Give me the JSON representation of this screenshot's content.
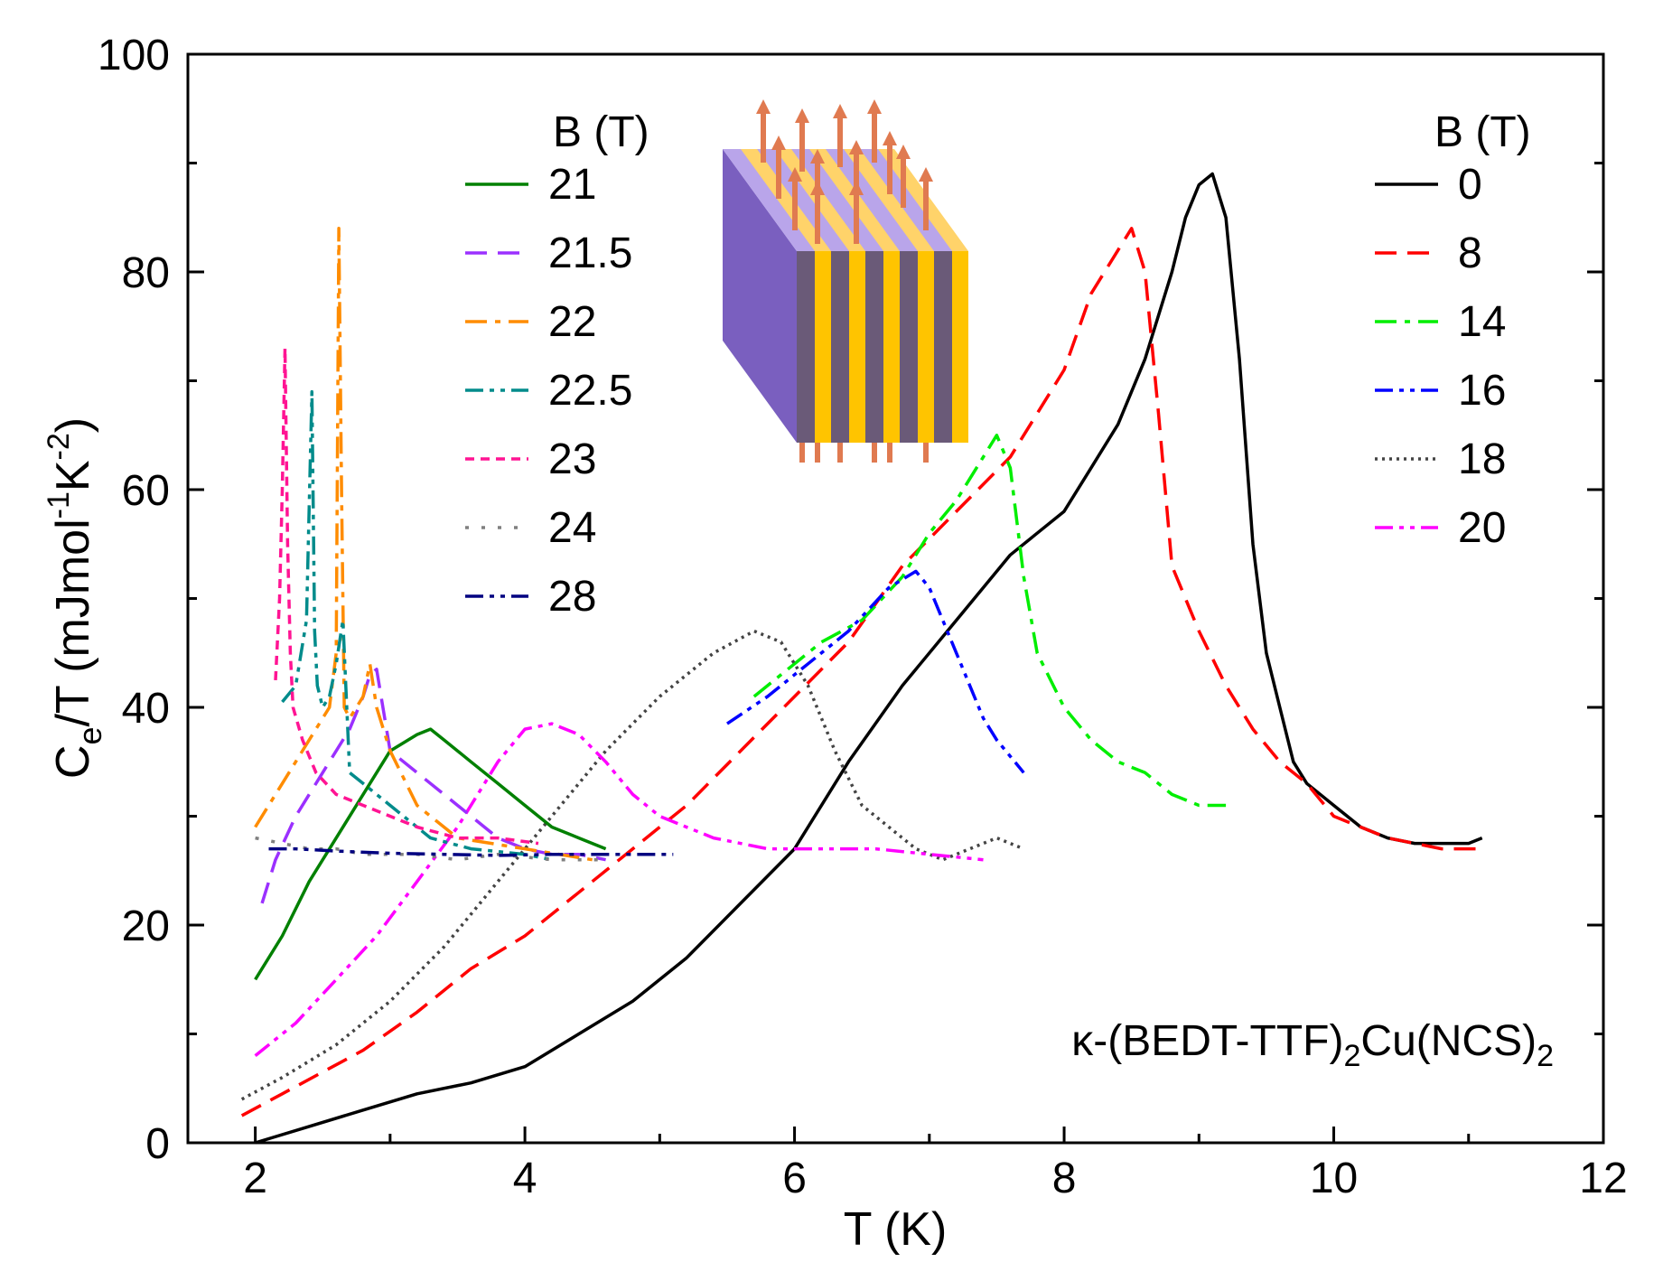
{
  "chart_data": {
    "type": "line",
    "title": "",
    "xlabel": "T (K)",
    "ylabel_main": "C",
    "ylabel_sub": "e",
    "ylabel_rest": "/T (mJmol",
    "ylabel_exp1": "-1",
    "ylabel_k": "K",
    "ylabel_exp2": "-2",
    "ylabel_close": ")",
    "xlim": [
      1.5,
      12
    ],
    "ylim": [
      0,
      100
    ],
    "x_ticks": [
      2,
      4,
      6,
      8,
      10,
      12
    ],
    "x_tick_labels": [
      "2",
      "4",
      "6",
      "8",
      "10",
      "12"
    ],
    "y_ticks": [
      0,
      20,
      40,
      60,
      80,
      100
    ],
    "y_tick_labels": [
      "0",
      "20",
      "40",
      "60",
      "80",
      "100"
    ],
    "annotation": {
      "prefix": "κ-(BEDT-TTF)",
      "sub1": "2",
      "mid": "Cu(NCS)",
      "sub2": "2"
    },
    "legend_left": {
      "title": "B (T)",
      "position": "upper-left"
    },
    "legend_right": {
      "title": "B (T)",
      "position": "upper-right"
    },
    "series": [
      {
        "name": "0",
        "group": "right",
        "color": "#000000",
        "dash": "solid",
        "x": [
          2.0,
          2.4,
          2.8,
          3.2,
          3.6,
          4.0,
          4.4,
          4.8,
          5.2,
          5.6,
          6.0,
          6.4,
          6.8,
          7.2,
          7.6,
          7.8,
          8.0,
          8.2,
          8.4,
          8.6,
          8.8,
          8.9,
          9.0,
          9.1,
          9.2,
          9.3,
          9.4,
          9.5,
          9.6,
          9.7,
          9.8,
          10.0,
          10.2,
          10.4,
          10.6,
          10.8,
          11.0,
          11.1
        ],
        "y": [
          0,
          1.5,
          3,
          4.5,
          5.5,
          7,
          10,
          13,
          17,
          22,
          27,
          35,
          42,
          48,
          54,
          56,
          58,
          62,
          66,
          72,
          80,
          85,
          88,
          89,
          85,
          72,
          55,
          45,
          40,
          35,
          33,
          31,
          29,
          28,
          27.5,
          27.5,
          27.5,
          28
        ]
      },
      {
        "name": "8",
        "group": "right",
        "color": "#ff0000",
        "dash": "long-dash",
        "x": [
          1.9,
          2.2,
          2.5,
          2.8,
          3.2,
          3.6,
          4.0,
          4.4,
          4.8,
          5.2,
          5.6,
          6.0,
          6.4,
          6.8,
          7.2,
          7.6,
          8.0,
          8.2,
          8.4,
          8.5,
          8.6,
          8.7,
          8.8,
          9.0,
          9.2,
          9.4,
          9.6,
          9.8,
          10.0,
          10.4,
          10.8,
          11.1
        ],
        "y": [
          2.5,
          4.5,
          6.5,
          8.5,
          12,
          16,
          19,
          23,
          27,
          31,
          36,
          41,
          46,
          53,
          58,
          63,
          71,
          78,
          82,
          84,
          80,
          67,
          53,
          47,
          42,
          38,
          35,
          33,
          30,
          28,
          27,
          27
        ]
      },
      {
        "name": "14",
        "group": "right",
        "color": "#00ee00",
        "dash": "dash-dot",
        "x": [
          5.7,
          5.9,
          6.2,
          6.5,
          6.8,
          7.0,
          7.2,
          7.4,
          7.5,
          7.6,
          7.7,
          7.8,
          8.0,
          8.2,
          8.4,
          8.6,
          8.8,
          9.0,
          9.2
        ],
        "y": [
          41,
          43,
          46,
          48,
          52,
          56,
          59,
          63,
          65,
          62,
          52,
          45,
          40,
          37,
          35,
          34,
          32,
          31,
          31
        ]
      },
      {
        "name": "16",
        "group": "right",
        "color": "#0000ff",
        "dash": "dash-dot-dot",
        "x": [
          5.5,
          5.8,
          6.1,
          6.4,
          6.7,
          6.9,
          7.0,
          7.1,
          7.2,
          7.3,
          7.4,
          7.5,
          7.6,
          7.7
        ],
        "y": [
          38.5,
          41,
          44,
          47,
          51,
          52.5,
          51,
          48,
          45,
          42,
          39,
          37,
          35.5,
          34
        ]
      },
      {
        "name": "18",
        "group": "right",
        "color": "#444444",
        "dash": "dotted",
        "x": [
          1.9,
          2.2,
          2.6,
          3.0,
          3.4,
          3.8,
          4.2,
          4.6,
          5.0,
          5.4,
          5.7,
          5.9,
          6.1,
          6.3,
          6.5,
          6.7,
          6.9,
          7.1,
          7.3,
          7.5,
          7.7
        ],
        "y": [
          4,
          6,
          9,
          13,
          18,
          24,
          30,
          36,
          41,
          45,
          47,
          46,
          42,
          36,
          31,
          29,
          27,
          26,
          27,
          28,
          27
        ]
      },
      {
        "name": "20",
        "group": "right",
        "color": "#ff00ff",
        "dash": "dash-dot-dot",
        "x": [
          2.0,
          2.3,
          2.6,
          2.9,
          3.2,
          3.5,
          3.8,
          4.0,
          4.2,
          4.4,
          4.6,
          4.8,
          5.0,
          5.4,
          5.8,
          6.2,
          6.6,
          7.0,
          7.4
        ],
        "y": [
          8,
          11,
          15,
          19,
          24,
          29,
          35,
          38,
          38.5,
          37.5,
          35,
          32,
          30,
          28,
          27,
          27,
          27,
          26.5,
          26
        ]
      },
      {
        "name": "21",
        "group": "left",
        "color": "#008000",
        "dash": "solid",
        "x": [
          2.0,
          2.2,
          2.4,
          2.6,
          2.8,
          3.0,
          3.2,
          3.3,
          3.4,
          3.6,
          3.8,
          4.0,
          4.2,
          4.4,
          4.6
        ],
        "y": [
          15,
          19,
          24,
          28,
          32,
          36,
          37.5,
          38,
          37,
          35,
          33,
          31,
          29,
          28,
          27
        ]
      },
      {
        "name": "21.5",
        "group": "left",
        "color": "#9b30ff",
        "dash": "long-dash",
        "x": [
          2.05,
          2.15,
          2.3,
          2.5,
          2.7,
          2.8,
          2.85,
          2.9,
          3.0,
          3.2,
          3.4,
          3.6,
          3.8,
          4.0,
          4.2,
          4.4,
          4.6
        ],
        "y": [
          22,
          26,
          30,
          34,
          38,
          41,
          43,
          43.5,
          36,
          34,
          32,
          30,
          28,
          27,
          26.5,
          26.5,
          26
        ]
      },
      {
        "name": "22",
        "group": "left",
        "color": "#ff8c00",
        "dash": "dash-dot",
        "x": [
          2.0,
          2.2,
          2.4,
          2.55,
          2.6,
          2.62,
          2.64,
          2.66,
          2.7,
          2.8,
          2.85,
          2.9,
          3.0,
          3.2,
          3.5,
          4.0,
          4.5
        ],
        "y": [
          29,
          33,
          37,
          40,
          45,
          84,
          60,
          40,
          39,
          41,
          44,
          40,
          36,
          31,
          28,
          27,
          26
        ]
      },
      {
        "name": "22.5",
        "group": "left",
        "color": "#008b8b",
        "dash": "dash-dot-dot",
        "x": [
          2.2,
          2.3,
          2.38,
          2.42,
          2.44,
          2.46,
          2.5,
          2.55,
          2.6,
          2.65,
          2.7,
          2.8,
          3.0,
          3.3,
          3.6,
          4.0,
          4.2
        ],
        "y": [
          40.5,
          42,
          48,
          69,
          47,
          42,
          40,
          41,
          44,
          48,
          34,
          33,
          31,
          28,
          27,
          26.5,
          26
        ]
      },
      {
        "name": "23",
        "group": "left",
        "color": "#ff1493",
        "dash": "short-dash",
        "x": [
          2.15,
          2.18,
          2.2,
          2.22,
          2.24,
          2.26,
          2.28,
          2.35,
          2.45,
          2.6,
          2.8,
          3.0,
          3.2,
          3.5,
          3.8,
          4.1
        ],
        "y": [
          42.5,
          50,
          60,
          73,
          55,
          45,
          40,
          37,
          34,
          32,
          31,
          30,
          29,
          28,
          28,
          27.5
        ]
      },
      {
        "name": "24",
        "group": "left",
        "color": "#808080",
        "dash": "sparse-dotted",
        "x": [
          2.0,
          2.2,
          2.4,
          2.6,
          2.8,
          3.0,
          3.2,
          3.5,
          3.8,
          4.2,
          4.6
        ],
        "y": [
          28,
          27.5,
          27,
          27,
          26.5,
          26.5,
          26.5,
          26,
          26.5,
          26,
          26
        ]
      },
      {
        "name": "28",
        "group": "left",
        "color": "#000080",
        "dash": "dash-dot-dot",
        "x": [
          2.1,
          2.3,
          2.6,
          3.0,
          3.4,
          3.8,
          4.2,
          4.6,
          5.0,
          5.1
        ],
        "y": [
          27,
          27,
          26.8,
          26.6,
          26.5,
          26.4,
          26.5,
          26.5,
          26.5,
          26.5
        ]
      }
    ]
  }
}
